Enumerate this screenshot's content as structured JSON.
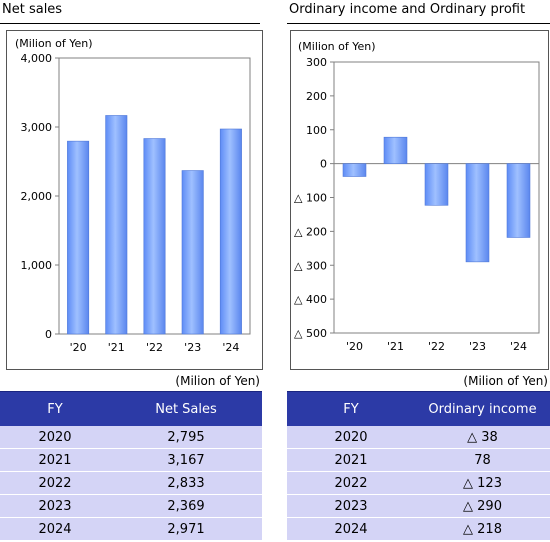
{
  "left_panel": {
    "title": "Net sales",
    "unit": "(Milion of Yen)"
  },
  "right_panel": {
    "title": "Ordinary income and Ordinary profit",
    "unit": "(Milion of Yen)"
  },
  "colors": {
    "bar": "#7fa9ff",
    "header": "#2c3aa6",
    "row": "#d4d4f6"
  },
  "chart_data": [
    {
      "type": "bar",
      "title": "Net sales",
      "ylabel": "(Milion of Yen)",
      "categories": [
        "'20",
        "'21",
        "'22",
        "'23",
        "'24"
      ],
      "values": [
        2795,
        3167,
        2833,
        2369,
        2971
      ],
      "ylim": [
        0,
        4000
      ],
      "yticks": [
        0,
        1000,
        2000,
        3000,
        4000
      ],
      "ytick_labels": [
        "0",
        "1,000",
        "2,000",
        "3,000",
        "4,000"
      ],
      "grid": false
    },
    {
      "type": "bar",
      "title": "Ordinary income and Ordinary profit",
      "ylabel": "(Milion of Yen)",
      "categories": [
        "'20",
        "'21",
        "'22",
        "'23",
        "'24"
      ],
      "values": [
        -38,
        78,
        -123,
        -290,
        -218
      ],
      "ylim": [
        -500,
        300
      ],
      "yticks": [
        300,
        200,
        100,
        0,
        -100,
        -200,
        -300,
        -400,
        -500
      ],
      "ytick_labels": [
        "300",
        "200",
        "100",
        "0",
        "△ 100",
        "△ 200",
        "△ 300",
        "△ 400",
        "△ 500"
      ],
      "grid": false
    }
  ],
  "tables": {
    "net_sales": {
      "unit": "(Milion of Yen)",
      "headers": [
        "FY",
        "Net Sales"
      ],
      "rows": [
        [
          "2020",
          "2,795"
        ],
        [
          "2021",
          "3,167"
        ],
        [
          "2022",
          "2,833"
        ],
        [
          "2023",
          "2,369"
        ],
        [
          "2024",
          "2,971"
        ]
      ]
    },
    "ordinary_income": {
      "unit": "(Milion of Yen)",
      "headers": [
        "FY",
        "Ordinary income"
      ],
      "rows": [
        [
          "2020",
          "△ 38"
        ],
        [
          "2021",
          "78"
        ],
        [
          "2022",
          "△ 123"
        ],
        [
          "2023",
          "△ 290"
        ],
        [
          "2024",
          "△ 218"
        ]
      ]
    }
  }
}
